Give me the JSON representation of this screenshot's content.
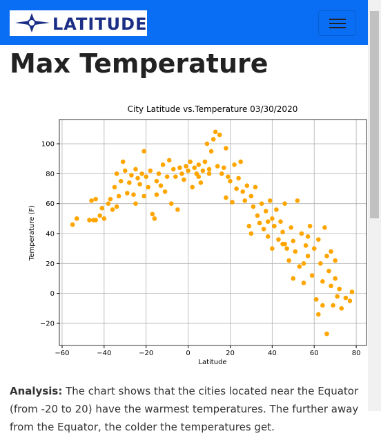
{
  "header": {
    "logo_text": "LATITUDE"
  },
  "page_title": "Max Temperature",
  "chart_data": {
    "type": "scatter",
    "title": "City Latitude vs.Temperature 03/30/2020",
    "x_label": "Latitude",
    "y_label": "Temperature (F)",
    "color": "#ffa500",
    "grid": true,
    "xlim": [
      -61.3,
      84.9
    ],
    "ylim": [
      -34.8,
      116.2
    ],
    "xticks": [
      {
        "value": -60,
        "label": "−60"
      },
      {
        "value": -40,
        "label": "−40"
      },
      {
        "value": -20,
        "label": "−20"
      },
      0,
      20,
      40,
      60,
      80
    ],
    "yticks": [
      {
        "value": -20,
        "label": "−20"
      },
      0,
      20,
      40,
      60,
      80,
      100
    ],
    "x": [
      -55,
      -53,
      -47,
      -46,
      -45,
      -44,
      -42,
      -41,
      -40,
      -38,
      -37,
      -36,
      -35,
      -34,
      -34,
      -33,
      -32,
      -31,
      -30,
      -29,
      -28,
      -27,
      -26,
      -25,
      -24,
      -23,
      -22,
      -21,
      -21,
      -20,
      -19,
      -18,
      -17,
      -16,
      -15,
      -14,
      -13,
      -12,
      -11,
      -10,
      -9,
      -8,
      -7,
      -6,
      -5,
      -4,
      -3,
      -2,
      -1,
      0,
      1,
      2,
      3,
      4,
      5,
      6,
      7,
      8,
      9,
      10,
      11,
      12,
      13,
      14,
      15,
      16,
      17,
      18,
      19,
      20,
      21,
      22,
      23,
      24,
      25,
      26,
      27,
      28,
      29,
      30,
      31,
      32,
      33,
      34,
      35,
      36,
      37,
      38,
      39,
      40,
      41,
      42,
      43,
      44,
      45,
      46,
      47,
      48,
      49,
      50,
      51,
      52,
      53,
      54,
      55,
      56,
      57,
      58,
      59,
      60,
      61,
      62,
      63,
      64,
      65,
      66,
      67,
      68,
      69,
      70,
      71,
      72,
      73,
      75,
      77,
      78,
      -44,
      46,
      55,
      62,
      66,
      70,
      50,
      45,
      38,
      30,
      18,
      10,
      5,
      -15,
      -25,
      40,
      57,
      64,
      68
    ],
    "values": [
      46,
      50,
      49,
      62,
      49,
      63,
      52,
      57,
      50,
      60,
      63,
      56,
      71,
      80,
      58,
      65,
      75,
      88,
      82,
      67,
      74,
      79,
      66,
      83,
      77,
      73,
      80,
      65,
      95,
      78,
      71,
      82,
      53,
      50,
      75,
      80,
      72,
      86,
      68,
      78,
      89,
      60,
      83,
      78,
      56,
      84,
      80,
      76,
      85,
      82,
      88,
      71,
      84,
      80,
      86,
      74,
      82,
      88,
      100,
      83,
      95,
      103,
      108,
      85,
      106,
      80,
      84,
      97,
      78,
      75,
      61,
      86,
      70,
      77,
      88,
      68,
      62,
      72,
      45,
      65,
      58,
      71,
      52,
      47,
      60,
      43,
      55,
      38,
      62,
      50,
      45,
      56,
      36,
      48,
      41,
      60,
      30,
      22,
      44,
      35,
      28,
      62,
      18,
      40,
      7,
      32,
      25,
      45,
      12,
      30,
      -4,
      36,
      20,
      8,
      44,
      -27,
      15,
      28,
      -8,
      22,
      -2,
      3,
      -10,
      -3,
      -5,
      1,
      49,
      33,
      20,
      -14,
      25,
      10,
      10,
      33,
      48,
      40,
      64,
      80,
      78,
      66,
      60,
      30,
      38,
      -8,
      5
    ]
  },
  "analysis": {
    "label": "Analysis:",
    "text": "The chart shows that the cities located near the Equator (from -20 to 20) have the warmest temperatures. The further away from the Equator, the colder the temperatures get."
  }
}
